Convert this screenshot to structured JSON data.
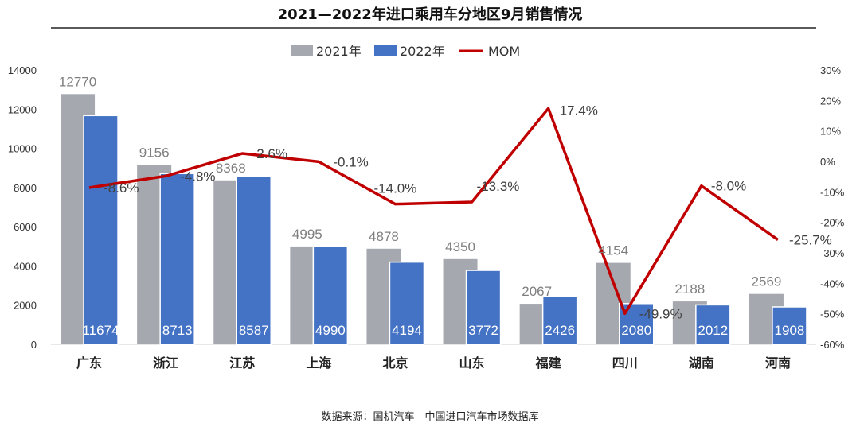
{
  "chart_data": {
    "type": "bar",
    "title": "2021—2022年进口乘用车分地区9月销售情况",
    "source": "数据来源：国机汽车—中国进口汽车市场数据库",
    "categories": [
      "广东",
      "浙江",
      "江苏",
      "上海",
      "北京",
      "山东",
      "福建",
      "四川",
      "湖南",
      "河南"
    ],
    "series": [
      {
        "name": "2021年",
        "type": "bar",
        "axis": "left",
        "color": "#a5a9af",
        "values": [
          12770,
          9156,
          8368,
          4995,
          4878,
          4350,
          2067,
          4154,
          2188,
          2569
        ],
        "labels": [
          "12770",
          "9156",
          "8368",
          "4995",
          "4878",
          "4350",
          "2067",
          "4154",
          "2188",
          "2569"
        ]
      },
      {
        "name": "2022年",
        "type": "bar",
        "axis": "left",
        "color": "#4472c4",
        "values": [
          11674,
          8713,
          8587,
          4990,
          4194,
          3772,
          2426,
          2080,
          2012,
          1908
        ],
        "labels": [
          "11674",
          "8713",
          "8587",
          "4990",
          "4194",
          "3772",
          "2426",
          "2080",
          "2012",
          "1908"
        ]
      },
      {
        "name": "MOM",
        "type": "line",
        "axis": "right",
        "color": "#c00000",
        "values": [
          -8.6,
          -4.8,
          2.6,
          -0.1,
          -14.0,
          -13.3,
          17.4,
          -49.9,
          -8.0,
          -25.7
        ],
        "labels": [
          "-8.6%",
          "-4.8%",
          "2.6%",
          "-0.1%",
          "-14.0%",
          "-13.3%",
          "17.4%",
          "-49.9%",
          "-8.0%",
          "-25.7%"
        ]
      }
    ],
    "y_left": {
      "min": 0,
      "max": 14000,
      "step": 2000,
      "ticks": [
        "0",
        "2000",
        "4000",
        "6000",
        "8000",
        "10000",
        "12000",
        "14000"
      ]
    },
    "y_right": {
      "min": -60,
      "max": 30,
      "step": 10,
      "ticks": [
        "-60%",
        "-50%",
        "-40%",
        "-30%",
        "-20%",
        "-10%",
        "0%",
        "10%",
        "20%",
        "30%"
      ]
    },
    "legend": {
      "position": "top-center",
      "items": [
        "2021年",
        "2022年",
        "MOM"
      ]
    },
    "grid": false
  }
}
